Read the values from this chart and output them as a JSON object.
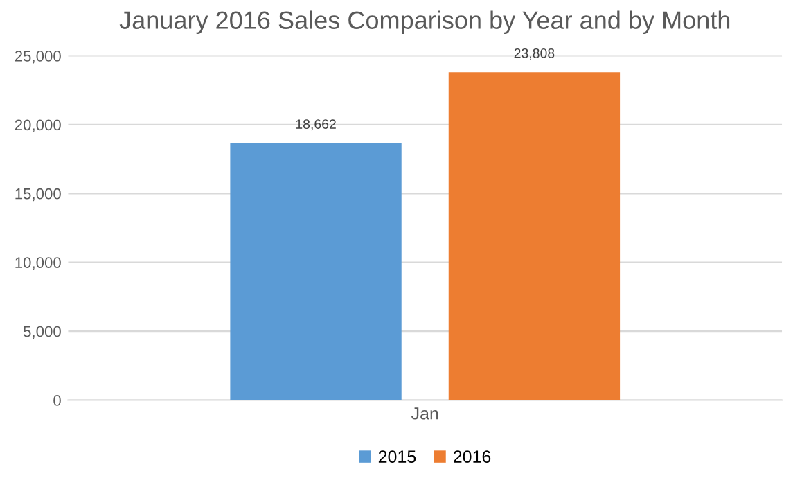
{
  "chart_data": {
    "type": "bar",
    "title": "January 2016 Sales Comparison by Year and by Month",
    "categories": [
      "Jan"
    ],
    "series": [
      {
        "name": "2015",
        "color": "#5b9bd5",
        "values": [
          18662
        ]
      },
      {
        "name": "2016",
        "color": "#ed7d31",
        "values": [
          23808
        ]
      }
    ],
    "ylim": [
      0,
      25000
    ],
    "yticks": [
      0,
      {
        "value": 5000,
        "label": "5,000"
      },
      {
        "value": 10000,
        "label": "10,000"
      },
      {
        "value": 15000,
        "label": "15,000"
      },
      {
        "value": 20000,
        "label": "20,000"
      },
      {
        "value": 25000,
        "label": "25,000"
      }
    ],
    "value_labels": [
      [
        "18,662"
      ],
      [
        "23,808"
      ]
    ],
    "grid": "y",
    "legend": "bottom"
  }
}
